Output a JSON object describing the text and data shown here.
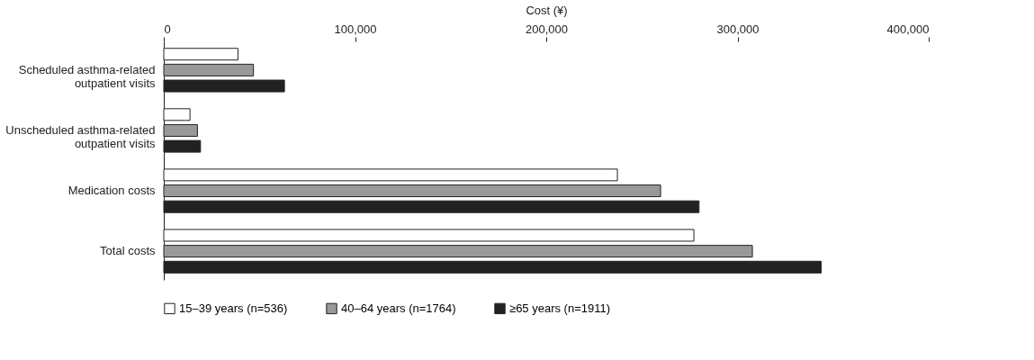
{
  "chart_data": {
    "type": "bar",
    "orientation": "horizontal",
    "xlabel": "Cost (¥)",
    "categories": [
      "Scheduled asthma-related outpatient visits",
      "Unscheduled asthma-related outpatient visits",
      "Medication costs",
      "Total costs"
    ],
    "series": [
      {
        "name": "15–39 years (n=536)",
        "color": "#ffffff",
        "values": [
          38800,
          13700,
          237200,
          277200
        ]
      },
      {
        "name": "40–64 years (n=1764)",
        "color": "#999999",
        "values": [
          46900,
          17600,
          259800,
          307800
        ]
      },
      {
        "name": "≥65 years (n=1911)",
        "color": "#222222",
        "values": [
          63100,
          19200,
          279900,
          343800
        ]
      }
    ],
    "xlim": [
      0,
      400000
    ],
    "xticks": [
      0,
      {
        "value": 100000,
        "label": "100,000"
      },
      {
        "value": 200000,
        "label": "200,000"
      },
      {
        "value": 300000,
        "label": "300,000"
      },
      {
        "value": 400000,
        "label": "400,000"
      }
    ],
    "grid": false,
    "legend": "bottom"
  }
}
